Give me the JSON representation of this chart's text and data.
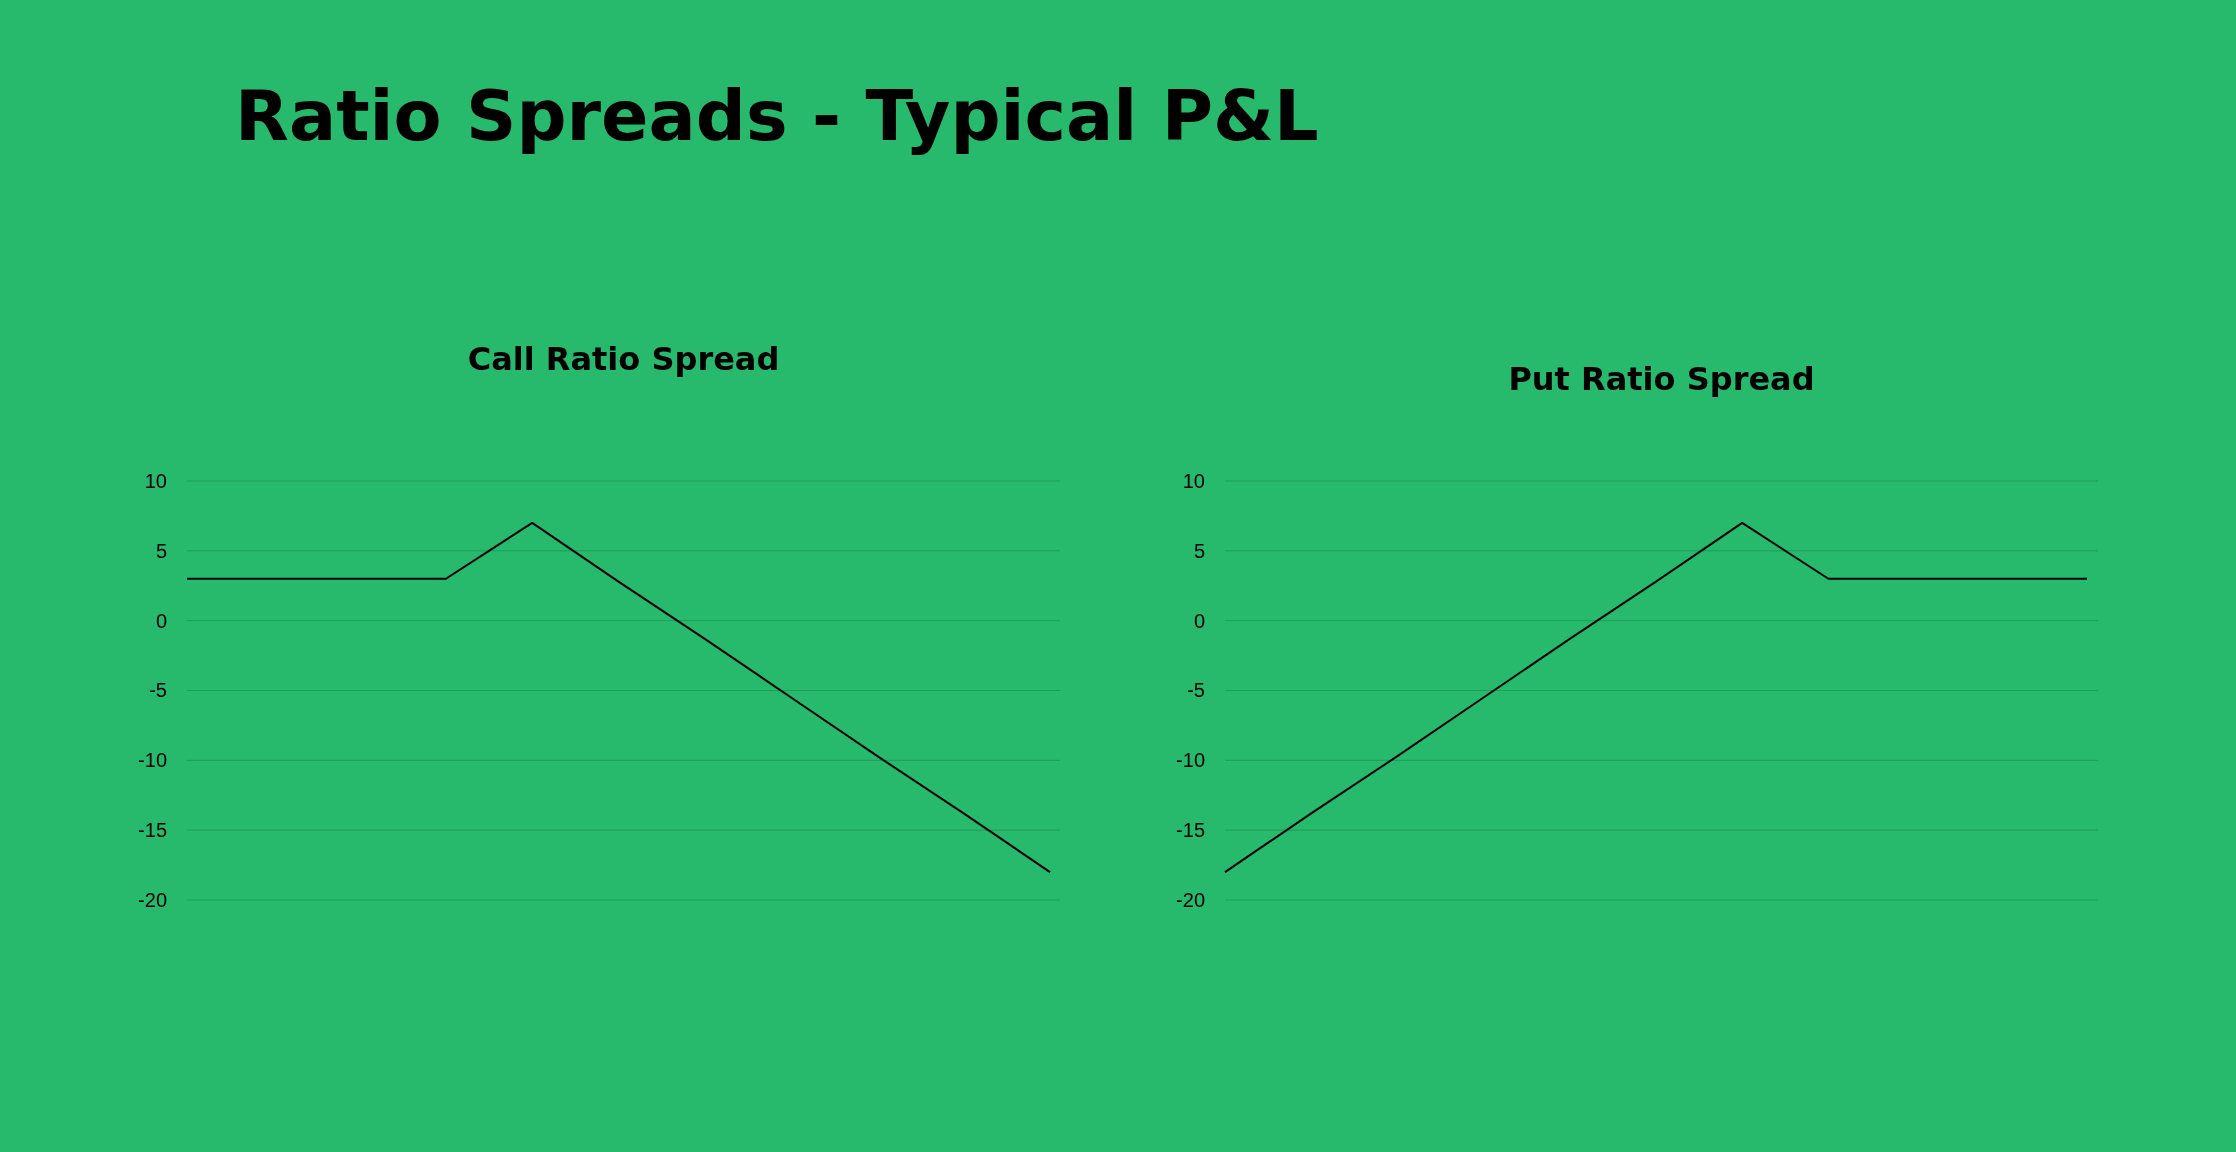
{
  "chart_data": [
    {
      "type": "line",
      "title": "Call Ratio Spread",
      "annotations": [
        "Ratio Spreads - Typical P&L"
      ],
      "categories": [
        null,
        null,
        null,
        null,
        null,
        null,
        null,
        null,
        null,
        null,
        null
      ],
      "series": [
        {
          "color": "#000000",
          "values": [
            3,
            3,
            3,
            3,
            7,
            2.8,
            -1.3,
            -5.5,
            -9.7,
            -13.8,
            -18
          ]
        }
      ],
      "ylim": [
        -20,
        10
      ],
      "yticks": [
        -20,
        -15,
        -10,
        -5,
        0,
        5,
        10
      ],
      "grid": "y",
      "marker": "none"
    },
    {
      "type": "line",
      "title": "Put Ratio Spread",
      "categories": [
        null,
        null,
        null,
        null,
        null,
        null,
        null,
        null,
        null,
        null,
        null
      ],
      "series": [
        {
          "color": "#000000",
          "values": [
            -18,
            -13.8,
            -9.7,
            -5.5,
            -1.3,
            2.8,
            7,
            3,
            3,
            3,
            3
          ]
        }
      ],
      "ylim": [
        -20,
        10
      ],
      "yticks": [
        -20,
        -15,
        -10,
        -5,
        0,
        5,
        10
      ],
      "grid": "y",
      "marker": "none"
    }
  ]
}
